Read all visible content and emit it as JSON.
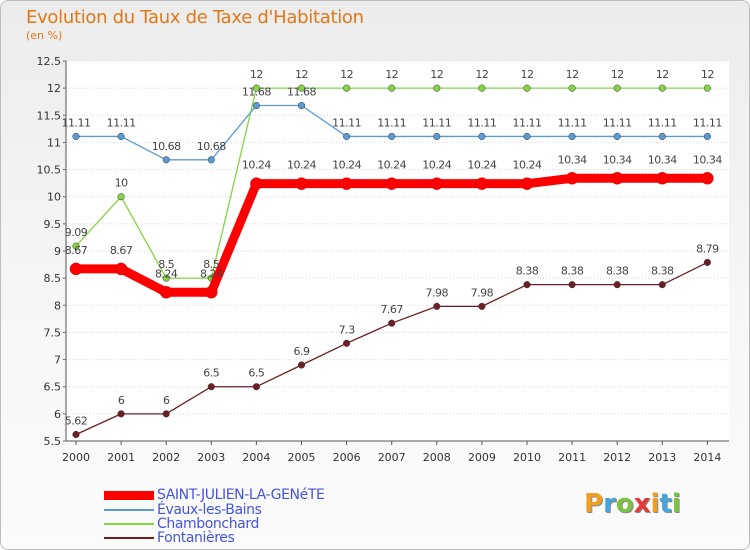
{
  "chart_data": {
    "type": "line",
    "title": "Evolution du Taux de Taxe d'Habitation",
    "subtitle": "(en %)",
    "x": [
      "2000",
      "2001",
      "2002",
      "2003",
      "2004",
      "2005",
      "2006",
      "2007",
      "2008",
      "2009",
      "2010",
      "2011",
      "2012",
      "2013",
      "2014"
    ],
    "ylim": [
      5.5,
      12.5
    ],
    "yticks": [
      "5.5",
      "6",
      "6.5",
      "7",
      "7.5",
      "8",
      "8.5",
      "9",
      "9.5",
      "10",
      "10.5",
      "11",
      "11.5",
      "12",
      "12.5"
    ],
    "grid": "horizontal",
    "legend_position": "bottom-left",
    "series": [
      {
        "name": "SAINT-JULIEN-LA-GENéTE",
        "color": "#ff0000",
        "values": [
          8.67,
          8.67,
          8.24,
          8.24,
          10.24,
          10.24,
          10.24,
          10.24,
          10.24,
          10.24,
          10.24,
          10.34,
          10.34,
          10.34,
          10.34
        ],
        "labels": [
          "8.67",
          "8.67",
          "8.24",
          "8.24",
          "10.24",
          "10.24",
          "10.24",
          "10.24",
          "10.24",
          "10.24",
          "10.24",
          "10.34",
          "10.34",
          "10.34",
          "10.34"
        ]
      },
      {
        "name": "Évaux-les-Bains",
        "color": "#5b9bd5",
        "values": [
          11.11,
          11.11,
          10.68,
          10.68,
          11.68,
          11.68,
          11.11,
          11.11,
          11.11,
          11.11,
          11.11,
          11.11,
          11.11,
          11.11,
          11.11
        ],
        "labels": [
          "11.11",
          "11.11",
          "10.68",
          "10.68",
          "11.68",
          "11.68",
          "11.11",
          "11.11",
          "11.11",
          "11.11",
          "11.11",
          "11.11",
          "11.11",
          "11.11",
          "11.11"
        ]
      },
      {
        "name": "Chambonchard",
        "color": "#86d442",
        "values": [
          9.09,
          10,
          8.5,
          8.5,
          12,
          12,
          12,
          12,
          12,
          12,
          12,
          12,
          12,
          12,
          12
        ],
        "labels": [
          "9.09",
          "10",
          "8.5",
          "8.5",
          "12",
          "12",
          "12",
          "12",
          "12",
          "12",
          "12",
          "12",
          "12",
          "12",
          "12"
        ]
      },
      {
        "name": "Fontanières",
        "color": "#6e1f25",
        "values": [
          5.62,
          6,
          6,
          6.5,
          6.5,
          6.9,
          7.3,
          7.67,
          7.98,
          7.98,
          8.38,
          8.38,
          8.38,
          8.38,
          8.79
        ],
        "labels": [
          "5.62",
          "6",
          "6",
          "6.5",
          "6.5",
          "6.9",
          "7.3",
          "7.67",
          "7.98",
          "7.98",
          "8.38",
          "8.38",
          "8.38",
          "8.38",
          "8.79"
        ]
      }
    ]
  },
  "logo": {
    "letters": [
      "P",
      "r",
      "o",
      "x",
      "i",
      "t",
      "i"
    ],
    "colors": [
      "#f0a020",
      "#46a4d9",
      "#7cc242",
      "#e53935",
      "#f0a020",
      "#46a4d9",
      "#7cc242"
    ]
  }
}
